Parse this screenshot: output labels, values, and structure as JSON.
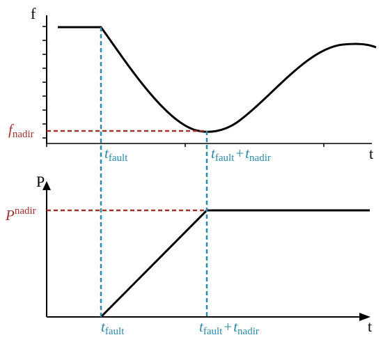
{
  "top_plot": {
    "y_axis_label": "f",
    "x_axis_label": "t",
    "f_nadir_label": {
      "main": "f",
      "sub": "nadir"
    },
    "t_fault_label": {
      "main": "t",
      "sub": "fault"
    },
    "t_fault_plus_nadir_label": {
      "main1": "t",
      "sub1": "fault",
      "op": "+",
      "main2": "t",
      "sub2": "nadir"
    }
  },
  "bottom_plot": {
    "y_axis_label": "P",
    "x_axis_label": "t",
    "p_nadir_label": {
      "main": "P",
      "sup": "nadir"
    },
    "t_fault_label": {
      "main": "t",
      "sub": "fault"
    },
    "t_fault_plus_nadir_label": {
      "main1": "t",
      "sub1": "fault",
      "op": "+",
      "main2": "t",
      "sub2": "nadir"
    }
  },
  "colors": {
    "curve": "#000000",
    "fault_guides": "#2a8aa8",
    "nadir_guides": "#a0342c"
  }
}
